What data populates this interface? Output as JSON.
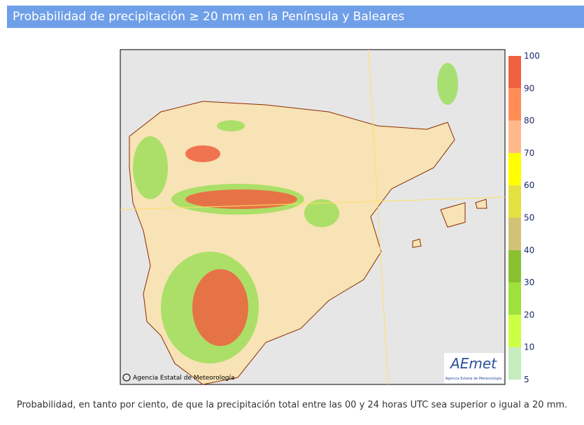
{
  "header": {
    "title": "Probabilidad de precipitación ≥ 20 mm en la Península y Baleares"
  },
  "legend": {
    "labels": [
      "100",
      "90",
      "80",
      "70",
      "60",
      "50",
      "40",
      "30",
      "20",
      "10",
      "5"
    ]
  },
  "map": {
    "copyright": "Agencia Estatal de Meteorología",
    "logo": {
      "name": "AEmet",
      "subtitle": "Agencia Estatal de Meteorología"
    }
  },
  "caption": "Probabilidad, en tanto por ciento, de que la precipitación total entre las 00 y 24 horas UTC sea superior o igual a 20 mm."
}
